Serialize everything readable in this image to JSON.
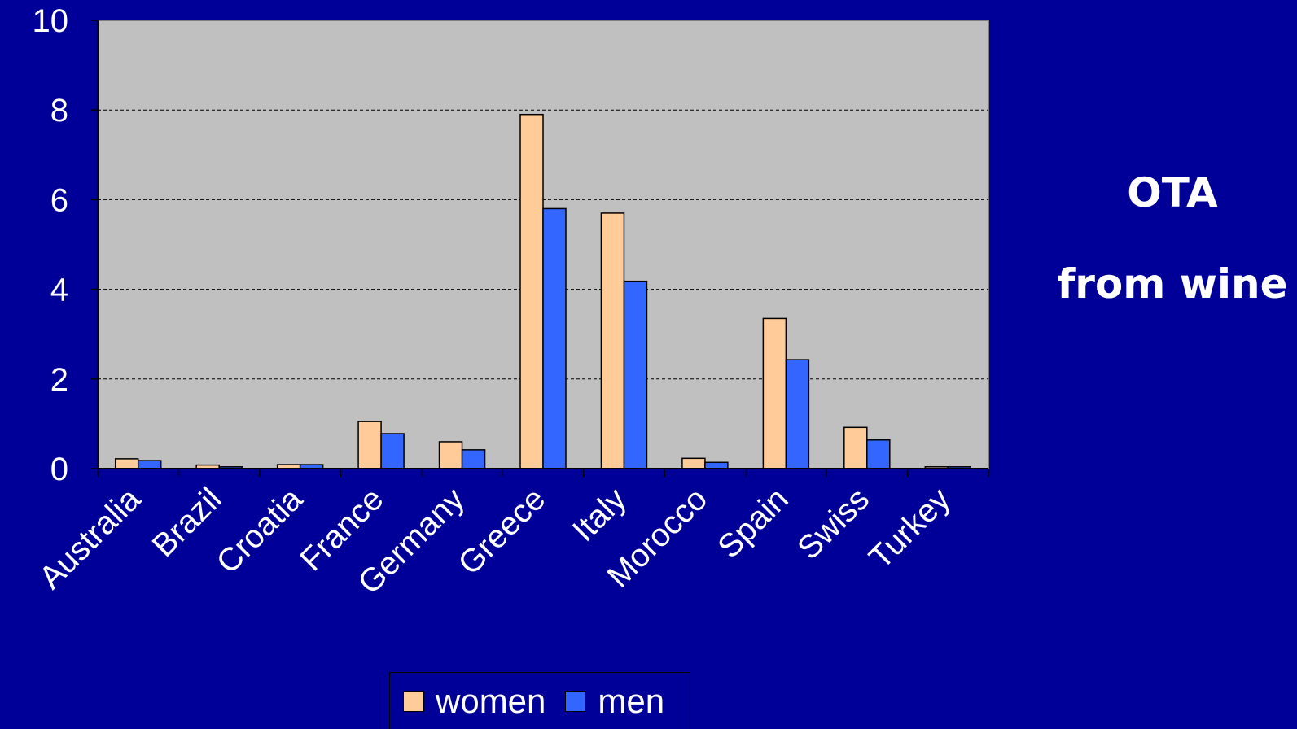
{
  "title_lines": [
    "OTA",
    "from wine"
  ],
  "chart_data": {
    "type": "bar",
    "categories": [
      "Australia",
      "Brazil",
      "Croatia",
      "France",
      "Germany",
      "Greece",
      "Italy",
      "Morocco",
      "Spain",
      "Swiss",
      "Turkey"
    ],
    "series": [
      {
        "name": "women",
        "color": "#ffcc99",
        "values": [
          0.22,
          0.08,
          0.09,
          1.05,
          0.6,
          7.9,
          5.7,
          0.23,
          3.35,
          0.92,
          0.04
        ]
      },
      {
        "name": "men",
        "color": "#3366ff",
        "values": [
          0.18,
          0.04,
          0.09,
          0.78,
          0.42,
          5.8,
          4.18,
          0.14,
          2.43,
          0.64,
          0.04
        ]
      }
    ],
    "ylim": [
      0,
      10
    ],
    "yticks": [
      0,
      2,
      4,
      6,
      8,
      10
    ],
    "grid": true,
    "legend_position": "bottom",
    "plot_background": "#c0c0c0",
    "title": "",
    "xlabel": "",
    "ylabel": ""
  }
}
